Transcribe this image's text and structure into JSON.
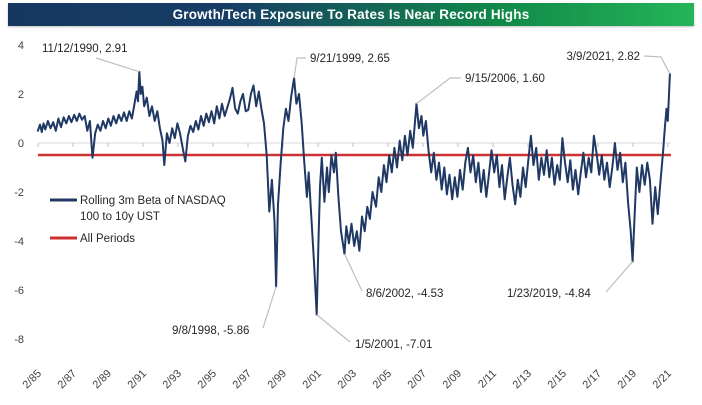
{
  "title_bar": {
    "text": "Growth/Tech Exposure To Rates Is Near Record Highs",
    "gradient_left": "#163860",
    "gradient_right": "#25b45a"
  },
  "chart_data": {
    "type": "line",
    "title": "Growth/Tech Exposure To Rates Is Near Record Highs",
    "xlabel": "",
    "ylabel": "",
    "ylim": [
      -8,
      4
    ],
    "grid": "zero-axis-only",
    "legend_position": "left-middle",
    "x_tick_labels": [
      "2/85",
      "2/87",
      "2/89",
      "2/91",
      "2/93",
      "2/95",
      "2/97",
      "2/99",
      "2/01",
      "2/03",
      "2/05",
      "2/07",
      "2/09",
      "2/11",
      "2/13",
      "2/15",
      "2/17",
      "2/19",
      "2/21"
    ],
    "y_ticks": [
      4,
      2,
      0,
      -2,
      -4,
      -6,
      -8
    ],
    "series": [
      {
        "name": "Rolling 3m Beta of NASDAQ 100 to 10y UST",
        "color": "#1F3864",
        "points": [
          [
            1985.08,
            0.5
          ],
          [
            1985.2,
            0.75
          ],
          [
            1985.3,
            0.45
          ],
          [
            1985.4,
            0.8
          ],
          [
            1985.5,
            0.55
          ],
          [
            1985.65,
            0.9
          ],
          [
            1985.8,
            0.6
          ],
          [
            1985.95,
            0.85
          ],
          [
            1986.1,
            0.5
          ],
          [
            1986.25,
            1.0
          ],
          [
            1986.4,
            0.65
          ],
          [
            1986.55,
            1.05
          ],
          [
            1986.7,
            0.8
          ],
          [
            1986.85,
            1.1
          ],
          [
            1987.0,
            0.85
          ],
          [
            1987.15,
            1.15
          ],
          [
            1987.3,
            0.9
          ],
          [
            1987.45,
            1.2
          ],
          [
            1987.6,
            0.95
          ],
          [
            1987.75,
            1.1
          ],
          [
            1987.9,
            0.5
          ],
          [
            1988.05,
            0.9
          ],
          [
            1988.2,
            -0.6
          ],
          [
            1988.35,
            0.4
          ],
          [
            1988.5,
            0.75
          ],
          [
            1988.65,
            0.5
          ],
          [
            1988.8,
            0.9
          ],
          [
            1988.95,
            0.6
          ],
          [
            1989.1,
            1.0
          ],
          [
            1989.25,
            0.7
          ],
          [
            1989.4,
            1.1
          ],
          [
            1989.55,
            0.8
          ],
          [
            1989.7,
            1.15
          ],
          [
            1989.85,
            0.9
          ],
          [
            1990.0,
            1.25
          ],
          [
            1990.15,
            0.9
          ],
          [
            1990.3,
            1.3
          ],
          [
            1990.45,
            1.0
          ],
          [
            1990.6,
            1.6
          ],
          [
            1990.72,
            2.1
          ],
          [
            1990.8,
            1.7
          ],
          [
            1990.87,
            2.91
          ],
          [
            1990.95,
            2.0
          ],
          [
            1991.05,
            2.3
          ],
          [
            1991.15,
            1.5
          ],
          [
            1991.3,
            1.85
          ],
          [
            1991.45,
            1.1
          ],
          [
            1991.6,
            1.5
          ],
          [
            1991.75,
            0.9
          ],
          [
            1991.9,
            1.3
          ],
          [
            1992.05,
            0.6
          ],
          [
            1992.2,
            0.1
          ],
          [
            1992.3,
            -0.9
          ],
          [
            1992.45,
            0.4
          ],
          [
            1992.6,
            0.0
          ],
          [
            1992.75,
            0.6
          ],
          [
            1992.9,
            0.2
          ],
          [
            1993.05,
            0.8
          ],
          [
            1993.2,
            0.4
          ],
          [
            1993.35,
            -0.2
          ],
          [
            1993.5,
            -0.75
          ],
          [
            1993.65,
            0.3
          ],
          [
            1993.8,
            0.7
          ],
          [
            1993.95,
            0.45
          ],
          [
            1994.1,
            0.9
          ],
          [
            1994.25,
            0.55
          ],
          [
            1994.4,
            1.1
          ],
          [
            1994.55,
            0.7
          ],
          [
            1994.7,
            1.2
          ],
          [
            1994.85,
            0.85
          ],
          [
            1995.0,
            1.3
          ],
          [
            1995.15,
            0.8
          ],
          [
            1995.3,
            1.5
          ],
          [
            1995.45,
            1.0
          ],
          [
            1995.6,
            1.6
          ],
          [
            1995.75,
            1.1
          ],
          [
            1995.9,
            1.45
          ],
          [
            1996.05,
            1.8
          ],
          [
            1996.2,
            2.25
          ],
          [
            1996.35,
            1.4
          ],
          [
            1996.5,
            1.2
          ],
          [
            1996.65,
            1.7
          ],
          [
            1996.8,
            2.0
          ],
          [
            1996.95,
            1.3
          ],
          [
            1997.1,
            1.35
          ],
          [
            1997.25,
            2.0
          ],
          [
            1997.4,
            2.35
          ],
          [
            1997.55,
            1.5
          ],
          [
            1997.7,
            2.1
          ],
          [
            1997.85,
            1.4
          ],
          [
            1998.0,
            0.8
          ],
          [
            1998.15,
            -0.5
          ],
          [
            1998.3,
            -2.8
          ],
          [
            1998.45,
            -1.5
          ],
          [
            1998.6,
            -3.2
          ],
          [
            1998.69,
            -5.86
          ],
          [
            1998.8,
            -2.5
          ],
          [
            1998.95,
            -0.8
          ],
          [
            1999.1,
            0.6
          ],
          [
            1999.25,
            1.4
          ],
          [
            1999.4,
            0.9
          ],
          [
            1999.55,
            1.9
          ],
          [
            1999.72,
            2.65
          ],
          [
            1999.85,
            1.6
          ],
          [
            2000.0,
            2.0
          ],
          [
            2000.15,
            0.8
          ],
          [
            2000.3,
            -0.8
          ],
          [
            2000.45,
            -2.2
          ],
          [
            2000.55,
            -1.2
          ],
          [
            2000.7,
            -3.0
          ],
          [
            2000.85,
            -4.8
          ],
          [
            2001.01,
            -7.01
          ],
          [
            2001.12,
            -3.8
          ],
          [
            2001.2,
            -1.8
          ],
          [
            2001.3,
            -0.6
          ],
          [
            2001.45,
            -2.4
          ],
          [
            2001.6,
            -1.0
          ],
          [
            2001.7,
            -2.0
          ],
          [
            2001.85,
            -0.5
          ],
          [
            2002.0,
            -1.2
          ],
          [
            2002.1,
            -0.4
          ],
          [
            2002.25,
            -2.2
          ],
          [
            2002.4,
            -3.6
          ],
          [
            2002.6,
            -4.53
          ],
          [
            2002.7,
            -3.4
          ],
          [
            2002.85,
            -4.1
          ],
          [
            2003.0,
            -3.3
          ],
          [
            2003.15,
            -4.2
          ],
          [
            2003.3,
            -3.6
          ],
          [
            2003.45,
            -4.4
          ],
          [
            2003.6,
            -3.0
          ],
          [
            2003.75,
            -3.6
          ],
          [
            2003.9,
            -2.6
          ],
          [
            2004.05,
            -3.1
          ],
          [
            2004.2,
            -2.0
          ],
          [
            2004.4,
            -2.6
          ],
          [
            2004.55,
            -1.4
          ],
          [
            2004.7,
            -2.0
          ],
          [
            2004.85,
            -0.9
          ],
          [
            2005.0,
            -1.6
          ],
          [
            2005.15,
            -0.5
          ],
          [
            2005.3,
            -1.2
          ],
          [
            2005.45,
            -0.2
          ],
          [
            2005.6,
            -1.0
          ],
          [
            2005.75,
            0.1
          ],
          [
            2005.9,
            -0.7
          ],
          [
            2006.05,
            0.3
          ],
          [
            2006.2,
            -0.5
          ],
          [
            2006.35,
            0.5
          ],
          [
            2006.5,
            -0.2
          ],
          [
            2006.71,
            1.6
          ],
          [
            2006.85,
            0.6
          ],
          [
            2007.0,
            1.1
          ],
          [
            2007.1,
            0.3
          ],
          [
            2007.25,
            0.9
          ],
          [
            2007.4,
            -0.3
          ],
          [
            2007.55,
            -1.2
          ],
          [
            2007.7,
            -0.4
          ],
          [
            2007.85,
            -1.5
          ],
          [
            2008.0,
            -0.8
          ],
          [
            2008.15,
            -1.9
          ],
          [
            2008.3,
            -1.0
          ],
          [
            2008.45,
            -2.1
          ],
          [
            2008.6,
            -1.3
          ],
          [
            2008.75,
            -2.3
          ],
          [
            2008.9,
            -1.4
          ],
          [
            2009.05,
            -2.2
          ],
          [
            2009.2,
            -1.1
          ],
          [
            2009.35,
            -1.9
          ],
          [
            2009.5,
            -0.8
          ],
          [
            2009.65,
            -0.2
          ],
          [
            2009.8,
            -1.2
          ],
          [
            2009.95,
            -0.5
          ],
          [
            2010.1,
            -1.6
          ],
          [
            2010.25,
            -0.8
          ],
          [
            2010.4,
            -2.0
          ],
          [
            2010.55,
            -1.1
          ],
          [
            2010.7,
            -2.2
          ],
          [
            2010.85,
            -1.3
          ],
          [
            2011.0,
            -0.3
          ],
          [
            2011.15,
            -1.2
          ],
          [
            2011.3,
            -0.5
          ],
          [
            2011.45,
            -1.8
          ],
          [
            2011.6,
            -0.9
          ],
          [
            2011.75,
            -2.3
          ],
          [
            2011.9,
            -1.4
          ],
          [
            2012.05,
            -0.6
          ],
          [
            2012.2,
            -1.7
          ],
          [
            2012.35,
            -2.5
          ],
          [
            2012.5,
            -1.5
          ],
          [
            2012.65,
            -2.2
          ],
          [
            2012.8,
            -1.0
          ],
          [
            2012.95,
            -1.8
          ],
          [
            2013.1,
            -0.7
          ],
          [
            2013.25,
            0.3
          ],
          [
            2013.4,
            -0.9
          ],
          [
            2013.55,
            -0.2
          ],
          [
            2013.7,
            -1.5
          ],
          [
            2013.85,
            -0.6
          ],
          [
            2014.0,
            -1.3
          ],
          [
            2014.15,
            -0.3
          ],
          [
            2014.3,
            -1.4
          ],
          [
            2014.45,
            -0.6
          ],
          [
            2014.6,
            -1.7
          ],
          [
            2014.75,
            -0.9
          ],
          [
            2014.9,
            -1.5
          ],
          [
            2015.05,
            0.2
          ],
          [
            2015.2,
            -0.8
          ],
          [
            2015.35,
            -1.6
          ],
          [
            2015.5,
            -0.7
          ],
          [
            2015.65,
            -1.9
          ],
          [
            2015.8,
            -1.1
          ],
          [
            2015.95,
            -2.1
          ],
          [
            2016.1,
            -1.2
          ],
          [
            2016.25,
            -0.4
          ],
          [
            2016.4,
            -1.4
          ],
          [
            2016.55,
            -0.6
          ],
          [
            2016.7,
            -1.2
          ],
          [
            2016.85,
            0.3
          ],
          [
            2017.0,
            -0.4
          ],
          [
            2017.15,
            -1.3
          ],
          [
            2017.3,
            -0.5
          ],
          [
            2017.45,
            -1.5
          ],
          [
            2017.6,
            -0.8
          ],
          [
            2017.75,
            -1.8
          ],
          [
            2017.9,
            -1.0
          ],
          [
            2018.05,
            0.0
          ],
          [
            2018.2,
            -1.1
          ],
          [
            2018.35,
            -0.4
          ],
          [
            2018.5,
            -1.6
          ],
          [
            2018.65,
            -0.8
          ],
          [
            2018.8,
            -2.4
          ],
          [
            2018.95,
            -3.6
          ],
          [
            2019.06,
            -4.84
          ],
          [
            2019.2,
            -2.6
          ],
          [
            2019.3,
            -1.0
          ],
          [
            2019.45,
            -2.0
          ],
          [
            2019.6,
            -0.9
          ],
          [
            2019.75,
            -1.7
          ],
          [
            2019.9,
            -0.8
          ],
          [
            2020.05,
            -1.5
          ],
          [
            2020.2,
            -3.3
          ],
          [
            2020.35,
            -1.8
          ],
          [
            2020.5,
            -2.9
          ],
          [
            2020.65,
            -1.6
          ],
          [
            2020.8,
            -0.4
          ],
          [
            2020.9,
            0.6
          ],
          [
            2021.0,
            1.4
          ],
          [
            2021.07,
            0.9
          ],
          [
            2021.13,
            1.8
          ],
          [
            2021.19,
            2.82
          ]
        ]
      }
    ],
    "mean_line": {
      "name": "All Periods",
      "value": -0.49,
      "color": "#CE3131"
    },
    "annotations": [
      {
        "label": "11/12/1990, 2.91",
        "point": [
          1990.87,
          2.91
        ],
        "text": [
          42,
          52
        ],
        "anchor": "start",
        "leader": [
          [
            96,
            58
          ]
        ]
      },
      {
        "label": "9/21/1999, 2.65",
        "point": [
          1999.72,
          2.65
        ],
        "text": [
          310,
          62
        ],
        "anchor": "start",
        "leader": [
          [
            306,
            58
          ],
          [
            297,
            58
          ]
        ]
      },
      {
        "label": "9/15/2006, 1.60",
        "point": [
          2006.71,
          1.6
        ],
        "text": [
          465,
          82
        ],
        "anchor": "start",
        "leader": [
          [
            461,
            78
          ],
          [
            450,
            78
          ]
        ]
      },
      {
        "label": "3/9/2021, 2.82",
        "point": [
          2021.19,
          2.82
        ],
        "text": [
          640,
          60
        ],
        "anchor": "end",
        "leader": [
          [
            644,
            56
          ],
          [
            661,
            57
          ]
        ]
      },
      {
        "label": "9/8/1998, -5.86",
        "point": [
          1998.69,
          -5.86
        ],
        "text": [
          172,
          334
        ],
        "anchor": "start",
        "leader": [
          [
            263,
            328
          ]
        ]
      },
      {
        "label": "1/5/2001, -7.01",
        "point": [
          2001.01,
          -7.01
        ],
        "text": [
          355,
          348
        ],
        "anchor": "start",
        "leader": [
          [
            350,
            342
          ]
        ]
      },
      {
        "label": "8/6/2002, -4.53",
        "point": [
          2002.6,
          -4.53
        ],
        "text": [
          366,
          297
        ],
        "anchor": "start",
        "leader": [
          [
            362,
            291
          ]
        ]
      },
      {
        "label": "1/23/2019, -4.84",
        "point": [
          2019.06,
          -4.84
        ],
        "text": [
          507,
          297
        ],
        "anchor": "start",
        "leader": [
          [
            606,
            292
          ]
        ]
      }
    ],
    "legend": {
      "items": [
        {
          "lines": [
            "Rolling 3m Beta of NASDAQ",
            "100 to 10y UST"
          ],
          "color": "#1F3864"
        },
        {
          "lines": [
            "All Periods"
          ],
          "color": "#CE3131"
        }
      ]
    }
  }
}
